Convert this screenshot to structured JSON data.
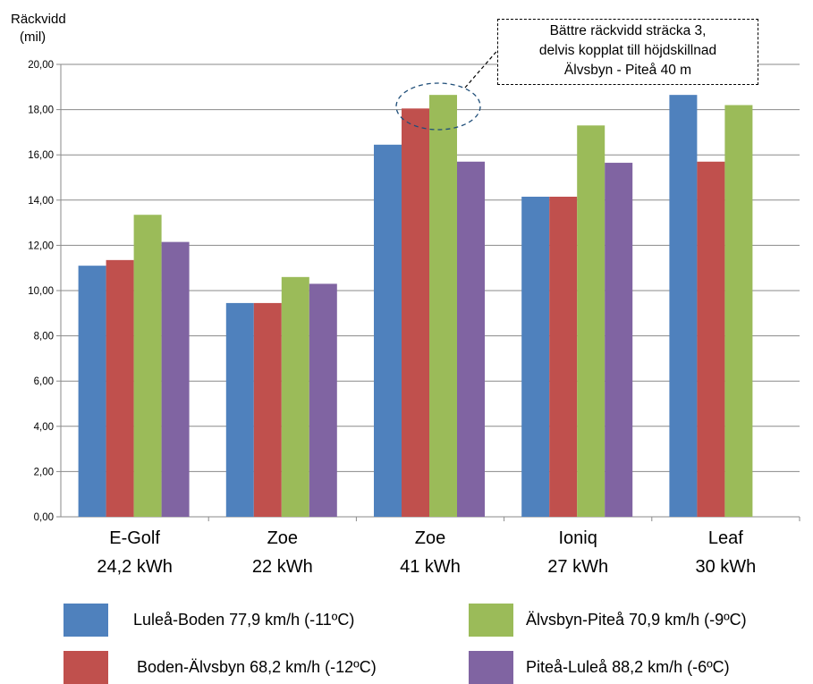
{
  "chart_data": {
    "type": "bar",
    "title": "",
    "ylabel_lines": [
      "Räckvidd",
      "(mil)"
    ],
    "xlabel": "",
    "ylim": [
      0,
      20
    ],
    "ytick_step": 2,
    "ytick_labels": [
      "0,00",
      "2,00",
      "4,00",
      "6,00",
      "8,00",
      "10,00",
      "12,00",
      "14,00",
      "16,00",
      "18,00",
      "20,00"
    ],
    "grid": true,
    "legend_position": "bottom",
    "categories": [
      {
        "line1": "E-Golf",
        "line2": "24,2 kWh"
      },
      {
        "line1": "Zoe",
        "line2": "22 kWh"
      },
      {
        "line1": "Zoe",
        "line2": "41 kWh"
      },
      {
        "line1": "Ioniq",
        "line2": "27 kWh"
      },
      {
        "line1": "Leaf",
        "line2": "30 kWh"
      }
    ],
    "series": [
      {
        "name": "Luleå-Boden 77,9 km/h (-11ºC)",
        "color": "#4f81bd",
        "values": [
          11.1,
          9.45,
          16.45,
          14.15,
          18.65
        ]
      },
      {
        "name": "Boden-Älvsbyn 68,2 km/h (-12ºC)",
        "color": "#c0504d",
        "values": [
          11.35,
          9.45,
          18.05,
          14.15,
          15.7
        ]
      },
      {
        "name": "Älvsbyn-Piteå 70,9 km/h (-9ºC)",
        "color": "#9bbb59",
        "values": [
          13.35,
          10.6,
          18.65,
          17.3,
          18.2
        ]
      },
      {
        "name": "Piteå-Luleå 88,2 km/h (-6ºC)",
        "color": "#8064a2",
        "values": [
          12.15,
          10.3,
          15.7,
          15.65,
          null
        ]
      }
    ],
    "annotation": {
      "lines": [
        "Bättre räckvidd sträcka 3,",
        "delvis kopplat till höjdskillnad",
        "Älvsbyn - Piteå 40 m"
      ],
      "target_category_index": 2
    }
  }
}
